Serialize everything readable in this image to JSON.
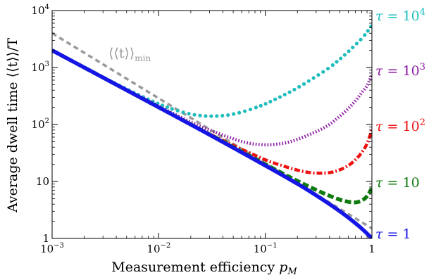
{
  "chart_data": {
    "type": "line",
    "xlabel": "Measurement efficiency",
    "xlabel_symbol": "p",
    "xlabel_subscript": "M",
    "ylabel": "Average dwell time ⟨⟨t⟩⟩/T",
    "xscale": "log",
    "yscale": "log",
    "xlim": [
      0.001,
      1
    ],
    "ylim": [
      1,
      10000
    ],
    "x_ticks": [
      {
        "value": 0.001,
        "base": "10",
        "exp": "−3"
      },
      {
        "value": 0.01,
        "base": "10",
        "exp": "−2"
      },
      {
        "value": 0.1,
        "base": "10",
        "exp": "−1"
      },
      {
        "value": 1,
        "base": "1",
        "exp": ""
      }
    ],
    "y_ticks": [
      {
        "value": 1,
        "base": "1",
        "exp": ""
      },
      {
        "value": 10,
        "base": "10",
        "exp": ""
      },
      {
        "value": 100,
        "base": "10",
        "exp": "2"
      },
      {
        "value": 1000,
        "base": "10",
        "exp": "3"
      },
      {
        "value": 10000,
        "base": "10",
        "exp": "4"
      }
    ],
    "grid": false,
    "series": [
      {
        "name": "τ = 1",
        "label_value": "1",
        "label_exp": "",
        "color": "#1515e6",
        "style": "solid",
        "x": [
          0.001,
          0.003,
          0.01,
          0.03,
          0.1,
          0.2,
          0.3,
          0.5,
          0.7,
          0.85,
          1.0
        ],
        "y": [
          2000,
          667,
          200,
          66,
          19,
          9.1,
          5.7,
          3.0,
          1.85,
          1.35,
          1.0
        ]
      },
      {
        "name": "τ = 10",
        "label_value": "10",
        "label_exp": "",
        "color": "#0f7a0f",
        "style": "dashed",
        "x": [
          0.001,
          0.003,
          0.01,
          0.03,
          0.1,
          0.2,
          0.3,
          0.4,
          0.5,
          0.6,
          0.7,
          0.8,
          0.9,
          1.0
        ],
        "y": [
          2000,
          667,
          200,
          67,
          20,
          10.2,
          7.1,
          5.6,
          4.8,
          4.4,
          4.3,
          4.6,
          5.5,
          7.6
        ]
      },
      {
        "name": "τ = 10²",
        "label_value": "10",
        "label_exp": "2",
        "color": "#ee1111",
        "style": "dashdot",
        "x": [
          0.001,
          0.003,
          0.01,
          0.03,
          0.1,
          0.15,
          0.2,
          0.25,
          0.3,
          0.4,
          0.5,
          0.6,
          0.7,
          0.8,
          0.9,
          1.0
        ],
        "y": [
          2000,
          667,
          201,
          68,
          24,
          18.5,
          15.8,
          14.5,
          14.0,
          14.3,
          16.0,
          19.0,
          24.0,
          32.0,
          46.0,
          80.0
        ]
      },
      {
        "name": "τ = 10³",
        "label_value": "10",
        "label_exp": "3",
        "color": "#8b1aa3",
        "style": "dotted",
        "x": [
          0.001,
          0.003,
          0.01,
          0.02,
          0.03,
          0.05,
          0.07,
          0.1,
          0.15,
          0.2,
          0.3,
          0.4,
          0.5,
          0.6,
          0.7,
          0.8,
          0.9,
          1.0
        ],
        "y": [
          2000,
          670,
          210,
          110,
          80,
          56,
          47,
          44,
          47,
          55,
          75,
          100,
          140,
          190,
          260,
          360,
          480,
          750
        ]
      },
      {
        "name": "τ = 10⁴",
        "label_value": "10",
        "label_exp": "4",
        "color": "#1fbdbd",
        "style": "markers",
        "x": [
          0.001,
          0.002,
          0.003,
          0.005,
          0.007,
          0.01,
          0.015,
          0.02,
          0.025,
          0.03,
          0.04,
          0.05,
          0.07,
          0.1,
          0.15,
          0.2,
          0.3,
          0.4,
          0.5,
          0.6,
          0.7,
          0.8,
          0.9,
          1.0
        ],
        "y": [
          2000,
          1010,
          680,
          420,
          310,
          230,
          175,
          152,
          143,
          140,
          143,
          152,
          180,
          230,
          330,
          440,
          700,
          1000,
          1400,
          1900,
          2500,
          3200,
          4200,
          5500
        ]
      },
      {
        "name": "⟨⟨t⟩⟩min",
        "color": "#9a9a9a",
        "style": "dashed-thick",
        "x": [
          0.001,
          1.0
        ],
        "y": [
          4000,
          1.5
        ]
      }
    ],
    "min_label": {
      "text": "⟨⟨t⟩⟩",
      "subscript": "min"
    }
  }
}
